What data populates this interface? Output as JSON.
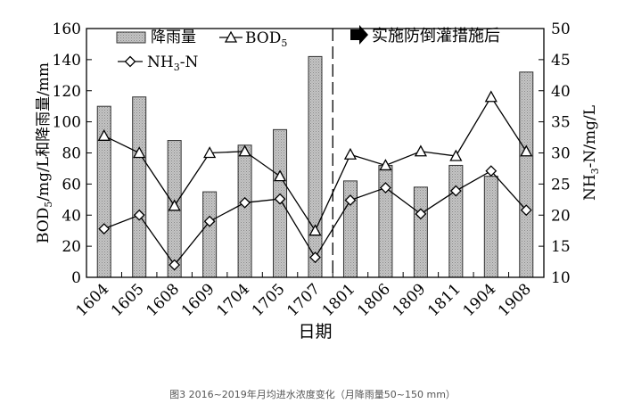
{
  "caption": "图3 2016~2019年月均进水浓度变化（月降雨量50~150 mm）",
  "chart_data": {
    "type": "bar+line",
    "categories": [
      "1604",
      "1605",
      "1608",
      "1609",
      "1704",
      "1705",
      "1707",
      "1801",
      "1806",
      "1809",
      "1811",
      "1904",
      "1908"
    ],
    "xlabel": "日期",
    "ylabel_left": "BOD5/mg/L和降雨量/mm",
    "ylabel_right": "NH3-N/mg/L",
    "ylim_left": [
      0,
      160
    ],
    "yticks_left": [
      "0",
      "20",
      "40",
      "60",
      "80",
      "100",
      "120",
      "140",
      "160"
    ],
    "ylim_right": [
      10,
      50
    ],
    "yticks_right": [
      "10",
      "15",
      "20",
      "25",
      "30",
      "35",
      "40",
      "45",
      "50"
    ],
    "annotation": "实施防倒灌措施后",
    "legend": {
      "rain": "降雨量",
      "bod": "BOD",
      "bod_sub": "5",
      "nh3_a": "NH",
      "nh3_sub": "3",
      "nh3_b": "-N"
    },
    "series": [
      {
        "name": "降雨量",
        "type": "bar",
        "axis": "left",
        "values": [
          110,
          116,
          88,
          55,
          85,
          95,
          142,
          62,
          72,
          58,
          72,
          65,
          132
        ]
      },
      {
        "name": "BOD5",
        "type": "line",
        "marker": "triangle",
        "axis": "left",
        "values": [
          91,
          80,
          46,
          80,
          81,
          65,
          30,
          79,
          72,
          81,
          78,
          116,
          81
        ]
      },
      {
        "name": "NH3-N",
        "type": "line",
        "marker": "diamond",
        "axis": "right",
        "values": [
          17.8,
          20.0,
          12.0,
          19.0,
          22.0,
          22.6,
          13.2,
          22.4,
          24.4,
          20.2,
          23.9,
          27.1,
          20.8
        ]
      }
    ]
  }
}
